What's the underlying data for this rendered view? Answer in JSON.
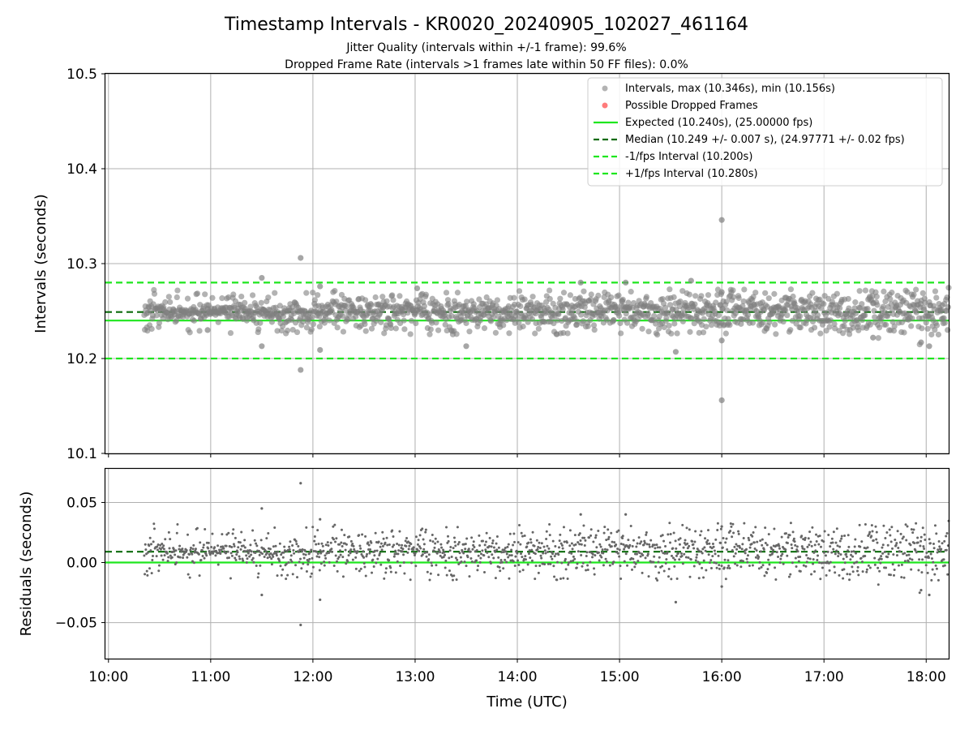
{
  "title": "Timestamp Intervals - KR0020_20240905_102027_461164",
  "subtitle_lines": [
    "Jitter Quality (intervals within +/-1 frame): 99.6%",
    "Dropped Frame Rate (intervals >1 frames late within 50 FF files): 0.0%"
  ],
  "colors": {
    "points": "#808080",
    "dropped": "#ff5a5a",
    "expected": "#1ee61e",
    "median": "#0c6b0c",
    "fps_band": "#1ee61e",
    "grid": "#b0b0b0"
  },
  "chart_data": [
    {
      "type": "scatter",
      "name": "intervals",
      "title": "Timestamp Intervals - KR0020_20240905_102027_461164",
      "xlabel": "",
      "ylabel": "Intervals (seconds)",
      "xlim_hours": [
        9.97,
        18.22
      ],
      "ylim": [
        10.1,
        10.5
      ],
      "yticks": [
        10.1,
        10.2,
        10.3,
        10.4,
        10.5
      ],
      "ytick_labels": [
        "10.1",
        "10.2",
        "10.3",
        "10.4",
        "10.5"
      ],
      "grid": true,
      "legend_position": "top-right",
      "legend": [
        {
          "label": "Intervals, max (10.346s), min (10.156s)",
          "kind": "dot-gray"
        },
        {
          "label": "Possible Dropped Frames",
          "kind": "dot-red"
        },
        {
          "label": "Expected (10.240s), (25.00000 fps)",
          "kind": "line-solid"
        },
        {
          "label": "Median (10.249 +/- 0.007 s), (24.97771 +/- 0.02 fps)",
          "kind": "line-dashed-dark"
        },
        {
          "label": "-1/fps Interval (10.200s)",
          "kind": "line-dashed"
        },
        {
          "label": "+1/fps Interval (10.280s)",
          "kind": "line-dashed"
        }
      ],
      "expected": 10.24,
      "median": 10.249,
      "minus_fps": 10.2,
      "plus_fps": 10.28,
      "series_start_hours": 10.35,
      "series_end_hours": 18.22,
      "sample_interval_s": 10.249,
      "typical_spread_s": 0.007,
      "outliers": [
        {
          "x": 10.97,
          "y": 10.23
        },
        {
          "x": 11.5,
          "y": 10.285
        },
        {
          "x": 11.5,
          "y": 10.213
        },
        {
          "x": 11.88,
          "y": 10.306
        },
        {
          "x": 11.88,
          "y": 10.188
        },
        {
          "x": 12.07,
          "y": 10.209
        },
        {
          "x": 12.07,
          "y": 10.276
        },
        {
          "x": 13.02,
          "y": 10.274
        },
        {
          "x": 13.5,
          "y": 10.213
        },
        {
          "x": 14.62,
          "y": 10.28
        },
        {
          "x": 15.06,
          "y": 10.28
        },
        {
          "x": 15.55,
          "y": 10.207
        },
        {
          "x": 15.7,
          "y": 10.282
        },
        {
          "x": 16.0,
          "y": 10.346
        },
        {
          "x": 16.0,
          "y": 10.156
        },
        {
          "x": 16.0,
          "y": 10.27
        },
        {
          "x": 16.0,
          "y": 10.219
        },
        {
          "x": 17.95,
          "y": 10.217
        },
        {
          "x": 18.03,
          "y": 10.213
        },
        {
          "x": 17.48,
          "y": 10.222
        }
      ]
    },
    {
      "type": "scatter",
      "name": "residuals",
      "xlabel": "Time (UTC)",
      "ylabel": "Residuals (seconds)",
      "xlim_hours": [
        9.97,
        18.22
      ],
      "ylim": [
        -0.08,
        0.078
      ],
      "yticks": [
        -0.05,
        0.0,
        0.05
      ],
      "ytick_labels": [
        "−0.05",
        "0.00",
        "0.05"
      ],
      "xticks_hours": [
        10,
        11,
        12,
        13,
        14,
        15,
        16,
        17,
        18
      ],
      "xtick_labels": [
        "10:00",
        "11:00",
        "12:00",
        "13:00",
        "14:00",
        "15:00",
        "16:00",
        "17:00",
        "18:00"
      ],
      "grid": true,
      "zero_line": 0.0,
      "median_residual": 0.009,
      "outliers": [
        {
          "x": 11.5,
          "y": 0.045
        },
        {
          "x": 11.5,
          "y": -0.027
        },
        {
          "x": 11.88,
          "y": 0.066
        },
        {
          "x": 11.88,
          "y": -0.052
        },
        {
          "x": 12.07,
          "y": -0.031
        },
        {
          "x": 12.07,
          "y": 0.036
        },
        {
          "x": 14.62,
          "y": 0.04
        },
        {
          "x": 15.06,
          "y": 0.04
        },
        {
          "x": 15.55,
          "y": -0.033
        },
        {
          "x": 16.0,
          "y": -0.02
        },
        {
          "x": 16.0,
          "y": 0.03
        },
        {
          "x": 17.95,
          "y": -0.023
        },
        {
          "x": 18.03,
          "y": -0.027
        }
      ]
    }
  ]
}
